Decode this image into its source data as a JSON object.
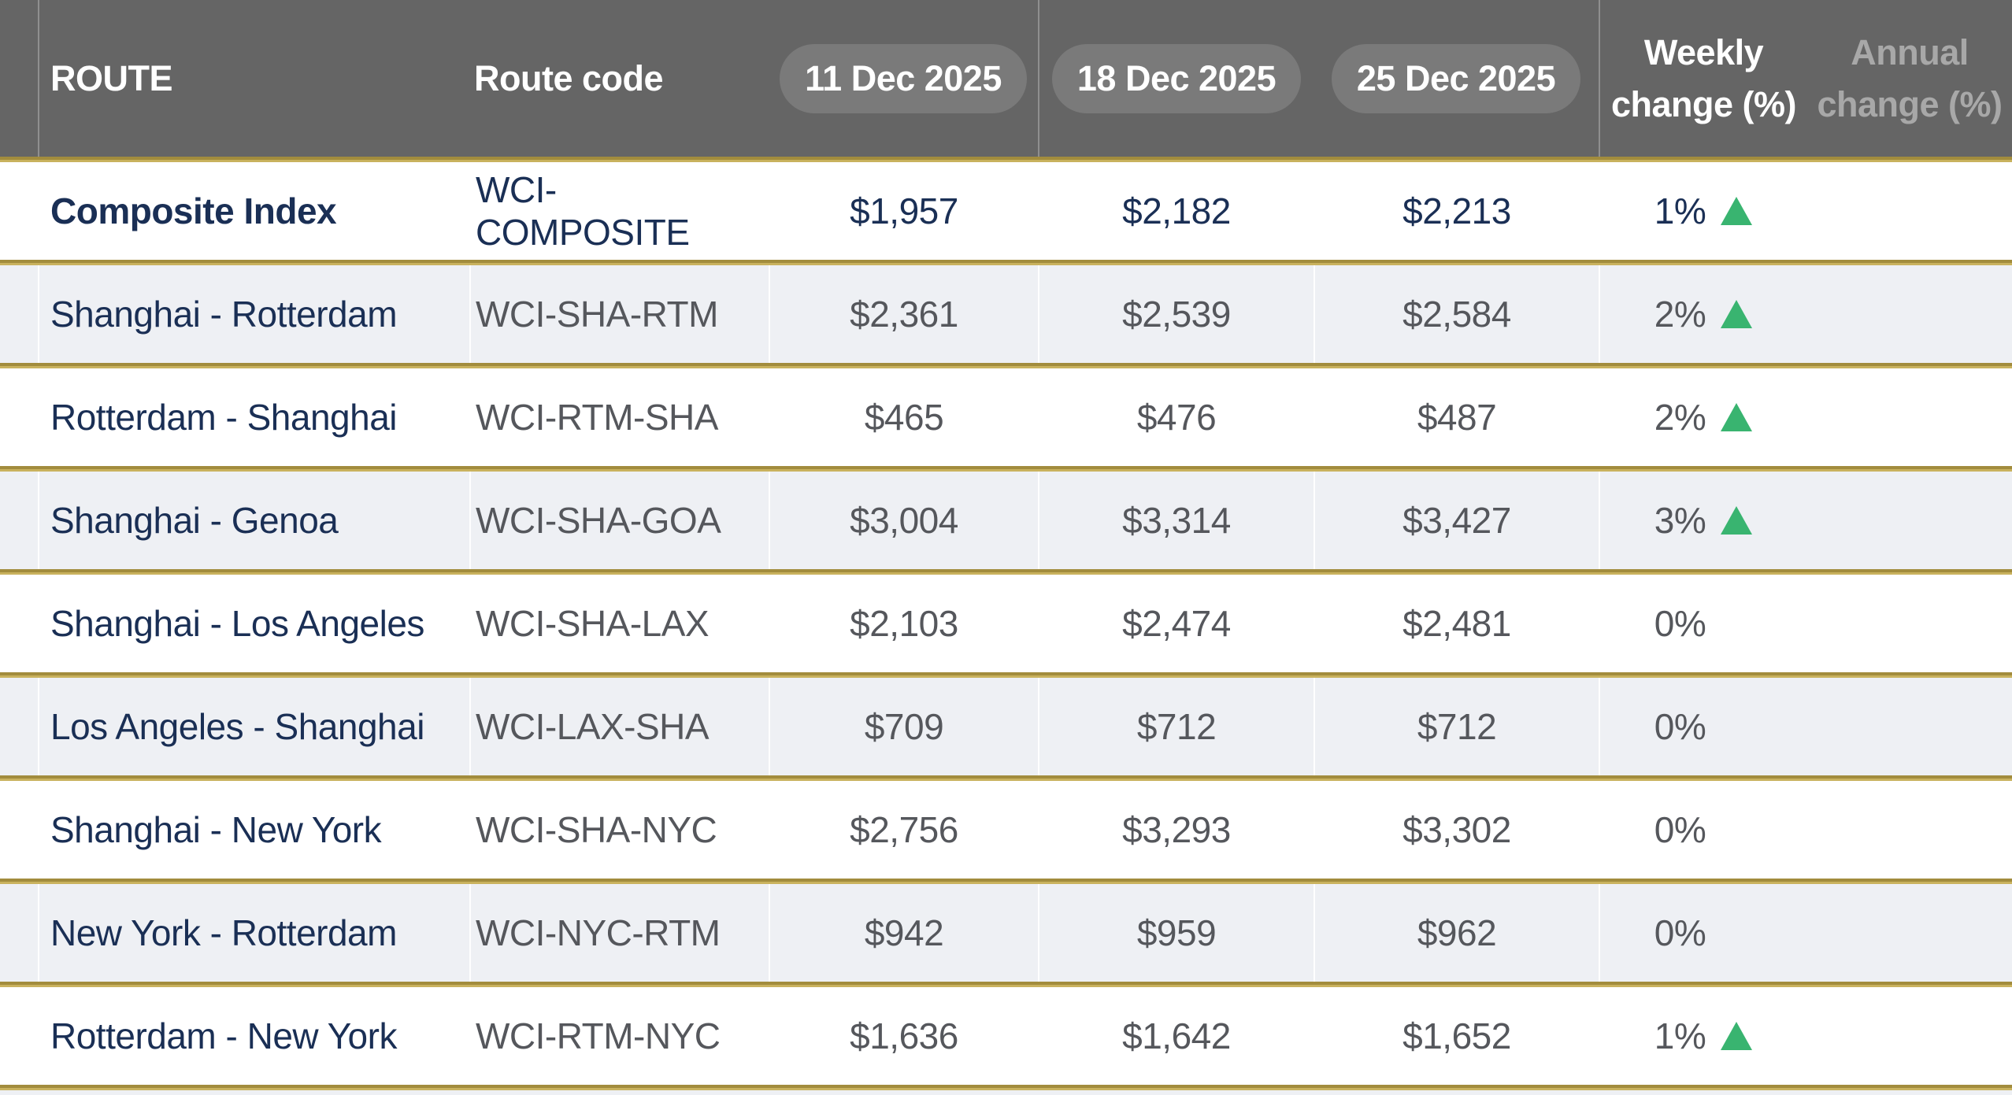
{
  "table": {
    "title": "World Container Index routes table",
    "header": {
      "route": "ROUTE",
      "route_code": "Route code",
      "dates": [
        "11 Dec 2025",
        "18 Dec 2025",
        "25 Dec 2025"
      ],
      "weekly": "Weekly change (%)",
      "annual": "Annual change (%)"
    },
    "rows": [
      {
        "route": "Composite Index",
        "code": "WCI-COMPOSITE",
        "prices": [
          "$1,957",
          "$2,182",
          "$2,213"
        ],
        "weekly": "1%",
        "dir": "up",
        "annual": ""
      },
      {
        "route": "Shanghai - Rotterdam",
        "code": "WCI-SHA-RTM",
        "prices": [
          "$2,361",
          "$2,539",
          "$2,584"
        ],
        "weekly": "2%",
        "dir": "up",
        "annual": ""
      },
      {
        "route": "Rotterdam - Shanghai",
        "code": "WCI-RTM-SHA",
        "prices": [
          "$465",
          "$476",
          "$487"
        ],
        "weekly": "2%",
        "dir": "up",
        "annual": ""
      },
      {
        "route": "Shanghai - Genoa",
        "code": "WCI-SHA-GOA",
        "prices": [
          "$3,004",
          "$3,314",
          "$3,427"
        ],
        "weekly": "3%",
        "dir": "up",
        "annual": ""
      },
      {
        "route": "Shanghai - Los Angeles",
        "code": "WCI-SHA-LAX",
        "prices": [
          "$2,103",
          "$2,474",
          "$2,481"
        ],
        "weekly": "0%",
        "dir": "none",
        "annual": ""
      },
      {
        "route": "Los Angeles - Shanghai",
        "code": "WCI-LAX-SHA",
        "prices": [
          "$709",
          "$712",
          "$712"
        ],
        "weekly": "0%",
        "dir": "none",
        "annual": ""
      },
      {
        "route": "Shanghai - New York",
        "code": "WCI-SHA-NYC",
        "prices": [
          "$2,756",
          "$3,293",
          "$3,302"
        ],
        "weekly": "0%",
        "dir": "none",
        "annual": ""
      },
      {
        "route": "New York - Rotterdam",
        "code": "WCI-NYC-RTM",
        "prices": [
          "$942",
          "$959",
          "$962"
        ],
        "weekly": "0%",
        "dir": "none",
        "annual": ""
      },
      {
        "route": "Rotterdam - New York",
        "code": "WCI-RTM-NYC",
        "prices": [
          "$1,636",
          "$1,642",
          "$1,652"
        ],
        "weekly": "1%",
        "dir": "up",
        "annual": ""
      }
    ],
    "icons": {
      "up_triangle": "up-triangle-icon"
    },
    "colors": {
      "header_bg": "#656565",
      "header_pill_bg": "#7a7a7a",
      "gold_separator_dark": "#a28c3d",
      "gold_separator_light": "#c9b25e",
      "navy_text": "#1a2f55",
      "gray_text": "#55575c",
      "stripe_row_bg": "#eef0f4",
      "up_green": "#39b470",
      "annual_header_text": "#a8a8a8"
    }
  }
}
